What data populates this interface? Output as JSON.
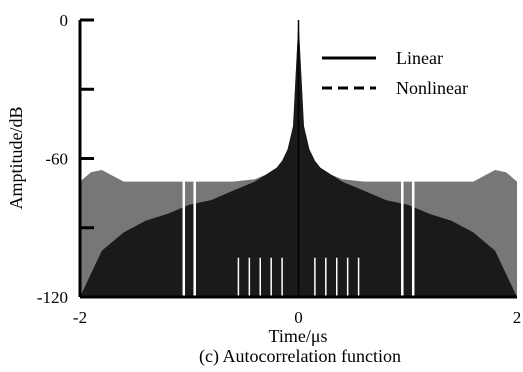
{
  "chart_data": {
    "type": "line",
    "title": "",
    "caption": "(c) Autocorrelation function",
    "xlabel": "Time/μs",
    "ylabel": "Amptitude/dB",
    "xlim": [
      -2,
      2
    ],
    "ylim": [
      -120,
      0
    ],
    "x_ticks": [
      {
        "value": -2,
        "label": "-2"
      },
      {
        "value": 0,
        "label": "0"
      },
      {
        "value": 2,
        "label": "2"
      }
    ],
    "y_ticks": [
      {
        "value": 0,
        "label": "0"
      },
      {
        "value": -60,
        "label": "-60"
      },
      {
        "value": -120,
        "label": "-120"
      }
    ],
    "y_minor_ticks": [
      -30,
      -90
    ],
    "grid": false,
    "legend_position": "top-right",
    "series": [
      {
        "name": "Linear",
        "style": "solid",
        "color": "#1a1a1a",
        "x": [
          -2,
          -1.8,
          -1.6,
          -1.4,
          -1.2,
          -1.0,
          -0.8,
          -0.6,
          -0.4,
          -0.3,
          -0.2,
          -0.15,
          -0.1,
          -0.05,
          0,
          0.05,
          0.1,
          0.15,
          0.2,
          0.3,
          0.4,
          0.6,
          0.8,
          1.0,
          1.2,
          1.4,
          1.6,
          1.8,
          2
        ],
        "y": [
          -120,
          -100,
          -92,
          -87,
          -84,
          -80,
          -78,
          -74,
          -70,
          -67,
          -64,
          -61,
          -56,
          -46,
          0,
          -46,
          -56,
          -61,
          -64,
          -67,
          -70,
          -74,
          -78,
          -80,
          -84,
          -87,
          -92,
          -100,
          -120
        ]
      },
      {
        "name": "Nonlinear",
        "style": "dashed",
        "color": "#777777",
        "x": [
          -2,
          -1.9,
          -1.8,
          -1.6,
          -1.4,
          -1.2,
          -1.0,
          -0.8,
          -0.6,
          -0.4,
          -0.3,
          -0.2,
          -0.1,
          -0.05,
          0,
          0.05,
          0.1,
          0.2,
          0.3,
          0.4,
          0.6,
          0.8,
          1.0,
          1.2,
          1.4,
          1.6,
          1.8,
          1.9,
          2
        ],
        "y": [
          -70,
          -66,
          -65,
          -70,
          -70,
          -70,
          -70,
          -70,
          -70,
          -69,
          -67,
          -64,
          -58,
          -48,
          0,
          -48,
          -58,
          -64,
          -67,
          -69,
          -70,
          -70,
          -70,
          -70,
          -70,
          -70,
          -65,
          -66,
          -70
        ]
      }
    ],
    "colors": {
      "nonlinear_fill": "#777777",
      "linear_fill": "#1a1a1a",
      "background": "#ffffff"
    }
  }
}
